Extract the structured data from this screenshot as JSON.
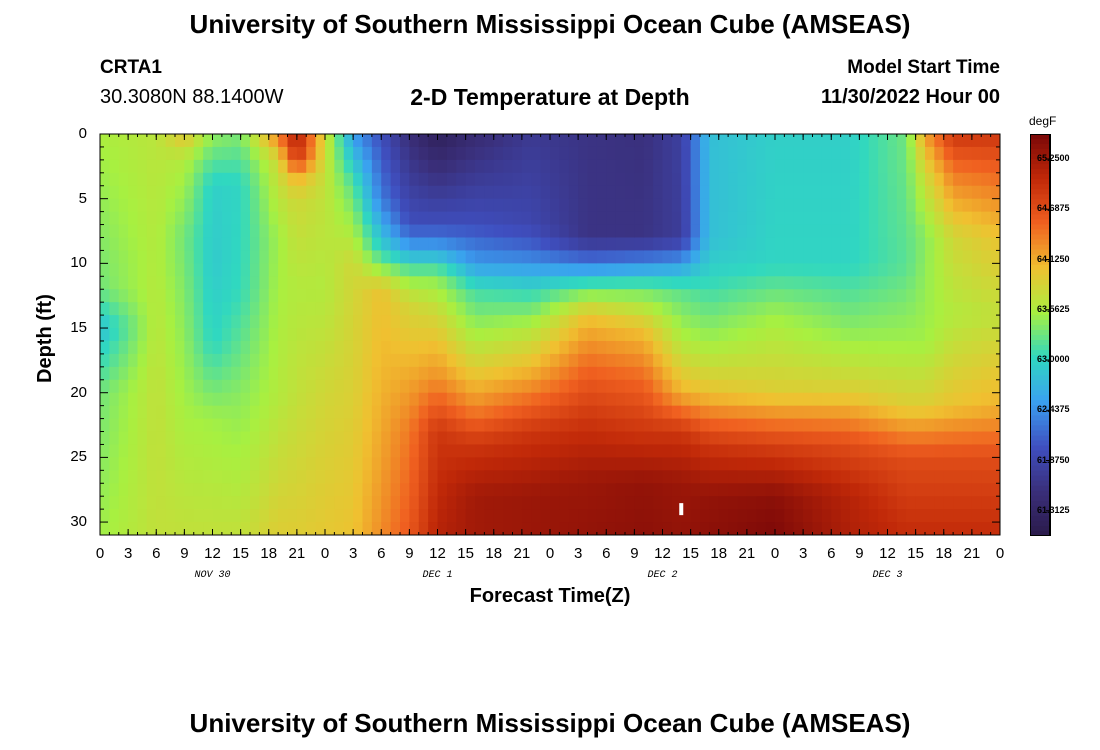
{
  "header": {
    "title": "University of Southern Mississippi Ocean Cube (AMSEAS)",
    "station": "CRTA1",
    "coords": "30.3080N  88.1400W",
    "subtitle": "2-D Temperature at Depth",
    "model_start_label": "Model Start Time",
    "model_start_value": "11/30/2022 Hour 00"
  },
  "footer": {
    "title": "University of Southern Mississippi Ocean Cube (AMSEAS)"
  },
  "chart_data": {
    "type": "heatmap",
    "xlabel": "Forecast Time(Z)",
    "ylabel": "Depth (ft)",
    "x_tick_labels": [
      "0",
      "3",
      "6",
      "9",
      "12",
      "15",
      "18",
      "21",
      "0",
      "3",
      "6",
      "9",
      "12",
      "15",
      "18",
      "21",
      "0",
      "3",
      "6",
      "9",
      "12",
      "15",
      "18",
      "21",
      "0",
      "3",
      "6",
      "9",
      "12",
      "15",
      "18",
      "21",
      "0"
    ],
    "x_range_hours": [
      0,
      96
    ],
    "day_labels": [
      "NOV 30",
      "DEC 1",
      "DEC 2",
      "DEC 3"
    ],
    "y_ticks": [
      0,
      5,
      10,
      15,
      20,
      25,
      30
    ],
    "y_range": [
      0,
      31
    ],
    "y_inverted": true,
    "colorbar": {
      "unit": "degF",
      "ticks": [
        "65.2500",
        "64.6875",
        "64.1250",
        "63.5625",
        "63.0000",
        "62.4375",
        "61.8750",
        "61.3125"
      ],
      "range": [
        61.03,
        65.53
      ]
    },
    "colors": {
      "min": "#2a1a4a",
      "c1": "#3a2f7a",
      "c2": "#3f4fc0",
      "c3": "#3aa0f0",
      "c4": "#30d8c0",
      "c5": "#a8f040",
      "c6": "#f0c030",
      "c7": "#f06020",
      "c8": "#c02808",
      "max": "#7a0808"
    },
    "depth_levels_ft": [
      0,
      1,
      2,
      3,
      4,
      5,
      6,
      7,
      8,
      9,
      10,
      11,
      12,
      13,
      14,
      15,
      16,
      17,
      18,
      19,
      20,
      21,
      22,
      23,
      24,
      25,
      26,
      27,
      28,
      29,
      30,
      31
    ],
    "profiles": [
      {
        "hour": 0,
        "keys": [
          [
            0,
            63.55
          ],
          [
            12,
            63.3
          ],
          [
            15,
            62.8
          ],
          [
            20,
            63.3
          ],
          [
            31,
            63.5
          ]
        ]
      },
      {
        "hour": 6,
        "keys": [
          [
            0,
            63.65
          ],
          [
            10,
            63.6
          ],
          [
            20,
            63.7
          ],
          [
            31,
            63.7
          ]
        ]
      },
      {
        "hour": 9,
        "keys": [
          [
            0,
            64.0
          ],
          [
            2,
            63.6
          ],
          [
            8,
            63.3
          ],
          [
            20,
            63.5
          ],
          [
            31,
            63.7
          ]
        ]
      },
      {
        "hour": 12,
        "keys": [
          [
            0,
            63.45
          ],
          [
            4,
            62.95
          ],
          [
            10,
            62.9
          ],
          [
            16,
            63.0
          ],
          [
            22,
            63.5
          ],
          [
            31,
            63.7
          ]
        ]
      },
      {
        "hour": 15,
        "keys": [
          [
            0,
            63.35
          ],
          [
            4,
            63.0
          ],
          [
            12,
            63.05
          ],
          [
            20,
            63.4
          ],
          [
            31,
            63.7
          ]
        ]
      },
      {
        "hour": 19,
        "keys": [
          [
            0,
            64.4
          ],
          [
            2,
            63.8
          ],
          [
            8,
            63.5
          ],
          [
            20,
            63.6
          ],
          [
            31,
            63.9
          ]
        ]
      },
      {
        "hour": 21,
        "keys": [
          [
            0,
            65.2
          ],
          [
            2,
            64.9
          ],
          [
            3,
            64.2
          ],
          [
            5,
            63.8
          ],
          [
            12,
            63.6
          ],
          [
            20,
            63.7
          ],
          [
            31,
            63.9
          ]
        ]
      },
      {
        "hour": 24,
        "keys": [
          [
            0,
            63.8
          ],
          [
            4,
            63.7
          ],
          [
            12,
            63.6
          ],
          [
            20,
            63.8
          ],
          [
            31,
            63.95
          ]
        ]
      },
      {
        "hour": 27,
        "keys": [
          [
            0,
            62.5
          ],
          [
            4,
            63.2
          ],
          [
            10,
            63.8
          ],
          [
            18,
            63.85
          ],
          [
            31,
            64.0
          ]
        ]
      },
      {
        "hour": 30,
        "keys": [
          [
            0,
            62.0
          ],
          [
            5,
            62.3
          ],
          [
            9,
            63.0
          ],
          [
            12,
            64.0
          ],
          [
            20,
            64.1
          ],
          [
            31,
            64.3
          ]
        ]
      },
      {
        "hour": 33,
        "keys": [
          [
            0,
            61.5
          ],
          [
            7,
            62.0
          ],
          [
            9,
            62.6
          ],
          [
            11,
            63.4
          ],
          [
            13,
            63.8
          ],
          [
            18,
            64.1
          ],
          [
            23,
            64.4
          ],
          [
            31,
            64.6
          ]
        ]
      },
      {
        "hour": 36,
        "keys": [
          [
            0,
            61.2
          ],
          [
            7,
            62.0
          ],
          [
            9,
            62.6
          ],
          [
            11,
            63.4
          ],
          [
            14,
            63.8
          ],
          [
            19,
            64.3
          ],
          [
            23,
            64.9
          ],
          [
            31,
            65.1
          ]
        ]
      },
      {
        "hour": 40,
        "keys": [
          [
            0,
            61.45
          ],
          [
            7,
            62.0
          ],
          [
            10,
            62.5
          ],
          [
            12,
            63.1
          ],
          [
            16,
            63.6
          ],
          [
            21,
            64.3
          ],
          [
            24,
            64.9
          ],
          [
            28,
            65.25
          ],
          [
            31,
            65.25
          ]
        ]
      },
      {
        "hour": 46,
        "keys": [
          [
            0,
            61.7
          ],
          [
            7,
            61.9
          ],
          [
            9,
            62.2
          ],
          [
            12,
            63.0
          ],
          [
            15,
            63.6
          ],
          [
            19,
            64.2
          ],
          [
            23,
            64.9
          ],
          [
            28,
            65.3
          ],
          [
            31,
            65.3
          ]
        ]
      },
      {
        "hour": 52,
        "keys": [
          [
            0,
            61.6
          ],
          [
            8,
            61.6
          ],
          [
            10,
            62.3
          ],
          [
            12,
            63.3
          ],
          [
            14,
            64.0
          ],
          [
            18,
            64.5
          ],
          [
            22,
            64.9
          ],
          [
            27,
            65.3
          ],
          [
            31,
            65.35
          ]
        ]
      },
      {
        "hour": 58,
        "keys": [
          [
            0,
            61.55
          ],
          [
            8,
            61.6
          ],
          [
            10,
            62.4
          ],
          [
            12,
            63.3
          ],
          [
            15,
            64.0
          ],
          [
            19,
            64.5
          ],
          [
            23,
            64.9
          ],
          [
            27,
            65.35
          ],
          [
            31,
            65.4
          ]
        ]
      },
      {
        "hour": 62,
        "keys": [
          [
            0,
            61.8
          ],
          [
            8,
            61.75
          ],
          [
            10,
            62.5
          ],
          [
            12,
            63.2
          ],
          [
            16,
            63.6
          ],
          [
            20,
            64.1
          ],
          [
            23,
            64.9
          ],
          [
            27,
            65.3
          ],
          [
            31,
            65.35
          ]
        ]
      },
      {
        "hour": 65,
        "keys": [
          [
            0,
            62.8
          ],
          [
            8,
            62.8
          ],
          [
            11,
            63.0
          ],
          [
            16,
            63.5
          ],
          [
            20,
            64.0
          ],
          [
            24,
            64.9
          ],
          [
            28,
            65.35
          ],
          [
            31,
            65.4
          ]
        ]
      },
      {
        "hour": 72,
        "keys": [
          [
            0,
            62.95
          ],
          [
            10,
            63.0
          ],
          [
            14,
            63.5
          ],
          [
            20,
            63.9
          ],
          [
            24,
            64.8
          ],
          [
            28,
            65.4
          ],
          [
            31,
            65.5
          ]
        ]
      },
      {
        "hour": 80,
        "keys": [
          [
            0,
            62.95
          ],
          [
            10,
            63.0
          ],
          [
            15,
            63.4
          ],
          [
            20,
            63.9
          ],
          [
            24,
            64.7
          ],
          [
            28,
            65.1
          ],
          [
            31,
            65.15
          ]
        ]
      },
      {
        "hour": 86,
        "keys": [
          [
            0,
            63.3
          ],
          [
            10,
            63.2
          ],
          [
            16,
            63.5
          ],
          [
            21,
            63.9
          ],
          [
            25,
            64.7
          ],
          [
            31,
            65.0
          ]
        ]
      },
      {
        "hour": 88,
        "keys": [
          [
            0,
            64.2
          ],
          [
            3,
            63.8
          ],
          [
            8,
            63.4
          ],
          [
            16,
            63.5
          ],
          [
            21,
            63.9
          ],
          [
            25,
            64.7
          ],
          [
            31,
            65.0
          ]
        ]
      },
      {
        "hour": 91,
        "keys": [
          [
            0,
            64.9
          ],
          [
            3,
            64.4
          ],
          [
            8,
            63.8
          ],
          [
            14,
            63.6
          ],
          [
            21,
            64.0
          ],
          [
            25,
            64.7
          ],
          [
            31,
            65.0
          ]
        ]
      },
      {
        "hour": 96,
        "keys": [
          [
            0,
            64.9
          ],
          [
            3,
            64.5
          ],
          [
            8,
            64.0
          ],
          [
            14,
            63.7
          ],
          [
            21,
            64.1
          ],
          [
            25,
            64.7
          ],
          [
            31,
            65.0
          ]
        ]
      }
    ],
    "marker": {
      "hour": 62,
      "depth_ft": 29,
      "color": "#ffffff"
    }
  }
}
